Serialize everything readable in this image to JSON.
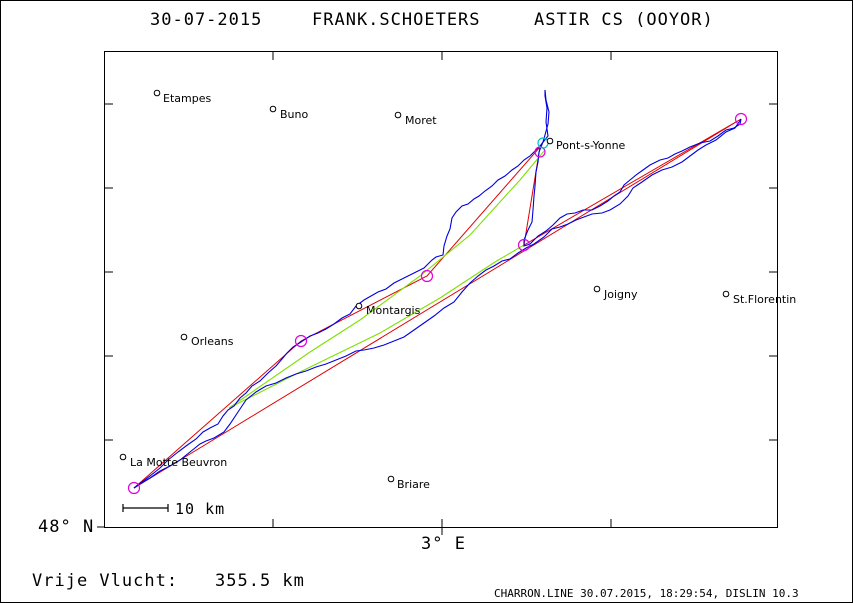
{
  "header": {
    "date": "30-07-2015",
    "pilot": "FRANK.SCHOETERS",
    "glider": "ASTIR CS (OOYOR)"
  },
  "axes": {
    "lat_label": "48° N",
    "lon_label": "3° E"
  },
  "scale_bar": {
    "label": "10 km",
    "length_km": 10
  },
  "distance": {
    "label": "Vrije Vlucht:",
    "value": "355.5 km"
  },
  "footer": "CHARRON.LINE 30.07.2015, 18:29:54, DISLIN 10.3",
  "towns": [
    {
      "name": "Etampes"
    },
    {
      "name": "Buno"
    },
    {
      "name": "Moret"
    },
    {
      "name": "Pont-s-Yonne"
    },
    {
      "name": "Montargis"
    },
    {
      "name": "Joigny"
    },
    {
      "name": "St.Florentin"
    },
    {
      "name": "Orleans"
    },
    {
      "name": "La Motte Beuvron"
    },
    {
      "name": "Briare"
    }
  ],
  "turnpoint_count": 7,
  "colors": {
    "track": "#0000e0",
    "track_alt": "#7ee000",
    "task_line": "#e00000",
    "turnpoint": "#e000e0",
    "start": "#00c0c0"
  }
}
